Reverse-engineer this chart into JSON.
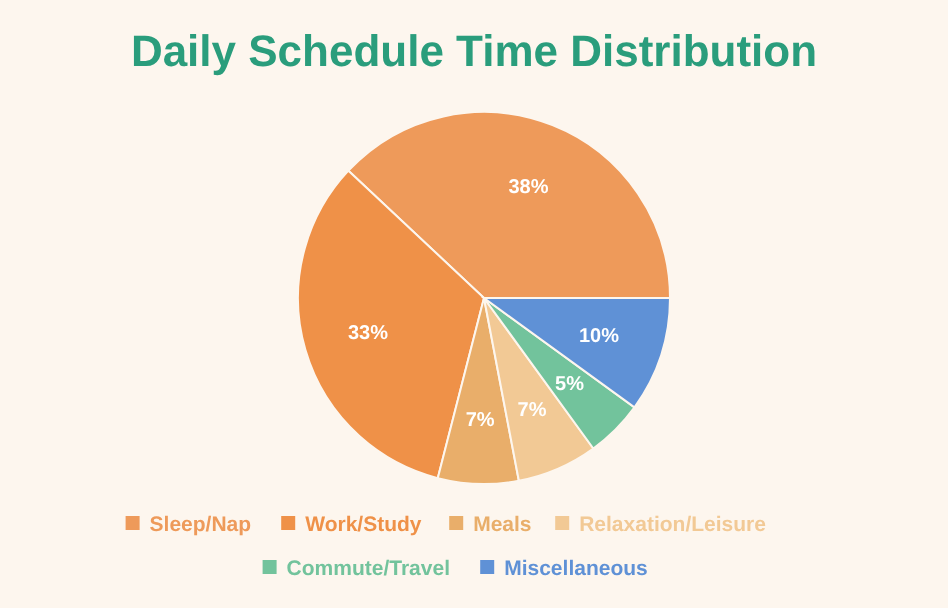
{
  "chart_data": {
    "type": "pie",
    "title": "Daily Schedule Time Distribution",
    "categories": [
      "Sleep/Nap",
      "Work/Study",
      "Meals",
      "Relaxation/Leisure",
      "Commute/Travel",
      "Miscellaneous"
    ],
    "values": [
      38,
      33,
      7,
      7,
      5,
      10
    ],
    "colors": [
      "#ee9a5a",
      "#ef9148",
      "#e9ae6a",
      "#f2c995",
      "#72c39c",
      "#5f91d6"
    ],
    "value_labels": [
      "38%",
      "33%",
      "7%",
      "7%",
      "5%",
      "10%"
    ],
    "legend": "bottom"
  }
}
